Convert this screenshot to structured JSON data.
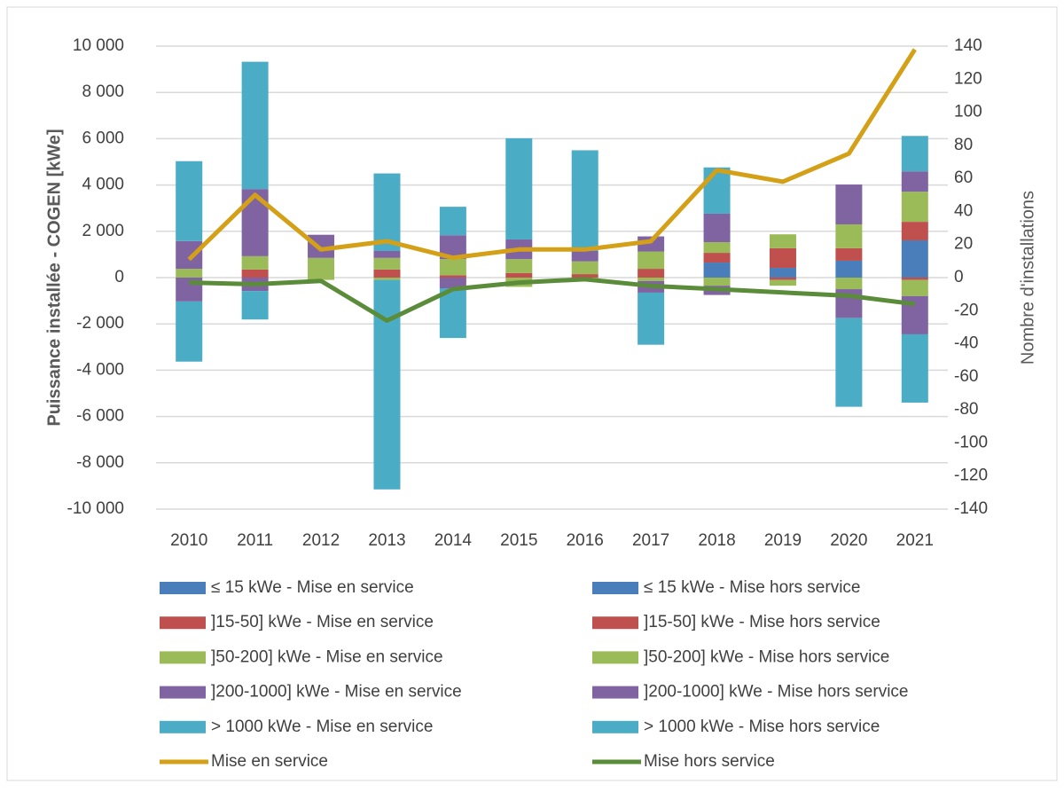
{
  "chart_data": {
    "type": "bar",
    "y_label": "Puissance installée - COGEN [kWe]",
    "y2_label": "Nombre d'installations",
    "categories": [
      "2010",
      "2011",
      "2012",
      "2013",
      "2014",
      "2015",
      "2016",
      "2017",
      "2018",
      "2019",
      "2020",
      "2021"
    ],
    "ylim": [
      -10000,
      10000
    ],
    "yticks": [
      {
        "value": -10000,
        "label": "-10 000"
      },
      {
        "value": -8000,
        "label": "-8 000"
      },
      {
        "value": -6000,
        "label": "-6 000"
      },
      {
        "value": -4000,
        "label": "-4 000"
      },
      {
        "value": -2000,
        "label": "-2 000"
      },
      0,
      {
        "value": 2000,
        "label": "2 000"
      },
      {
        "value": 4000,
        "label": "4 000"
      },
      {
        "value": 6000,
        "label": "6 000"
      },
      {
        "value": 8000,
        "label": "8 000"
      },
      {
        "value": 10000,
        "label": "10 000"
      }
    ],
    "y2lim": [
      -140,
      140
    ],
    "y2ticks": [
      -140,
      -120,
      -100,
      -80,
      -60,
      -40,
      -20,
      0,
      20,
      40,
      60,
      80,
      100,
      120,
      140
    ],
    "grid": true,
    "series": [
      {
        "name": "≤ 15 kWe - Mise en service",
        "color": "#4a7ebb",
        "values": [
          0,
          0,
          0,
          0,
          0,
          0,
          0,
          0,
          650,
          420,
          730,
          1610
        ]
      },
      {
        "name": "≤ 15 kWe - Mise hors service",
        "color": "#4a7ebb",
        "values": [
          0,
          0,
          0,
          0,
          0,
          0,
          0,
          0,
          0,
          0,
          0,
          0
        ]
      },
      {
        "name": "]15-50] kWe - Mise en service",
        "color": "#c0504d",
        "values": [
          0,
          350,
          0,
          350,
          100,
          200,
          150,
          380,
          420,
          850,
          540,
          800
        ]
      },
      {
        "name": "]15-50] kWe - Mise hors service",
        "color": "#c0504d",
        "values": [
          0,
          0,
          0,
          0,
          0,
          0,
          0,
          0,
          0,
          -100,
          0,
          -100
        ]
      },
      {
        "name": "]50-200] kWe - Mise en service",
        "color": "#9bbb59",
        "values": [
          380,
          575,
          850,
          500,
          700,
          600,
          550,
          750,
          460,
          600,
          1030,
          1300
        ]
      },
      {
        "name": "]50-200] kWe - Mise hors service",
        "color": "#9bbb59",
        "values": [
          0,
          0,
          -100,
          -100,
          0,
          -400,
          -100,
          -150,
          -350,
          -250,
          -500,
          -700
        ]
      },
      {
        "name": "]200-1000] kWe - Mise en service",
        "color": "#8064a2",
        "values": [
          1200,
          2900,
          1000,
          300,
          1030,
          850,
          450,
          650,
          1230,
          0,
          1720,
          880
        ]
      },
      {
        "name": "]200-1000] kWe - Mise hors service",
        "color": "#8064a2",
        "values": [
          -1030,
          -580,
          0,
          0,
          -460,
          0,
          0,
          -500,
          -400,
          0,
          -1250,
          -1650
        ]
      },
      {
        "name": "> 1000 kWe - Mise en service",
        "color": "#4bacc6",
        "values": [
          3450,
          5500,
          0,
          3350,
          1230,
          4370,
          4350,
          0,
          2000,
          0,
          0,
          1530
        ]
      },
      {
        "name": "> 1000 kWe - Mise hors service",
        "color": "#4bacc6",
        "values": [
          -2600,
          -1230,
          0,
          -9050,
          -2150,
          0,
          0,
          -2250,
          0,
          0,
          -3830,
          -2950
        ]
      },
      {
        "name": "Mise en service",
        "type": "line",
        "axis": "y2",
        "color": "#d4a017",
        "values": [
          11,
          50,
          17,
          22,
          12,
          17,
          17,
          22,
          65,
          58,
          75,
          138
        ]
      },
      {
        "name": "Mise hors service",
        "type": "line",
        "axis": "y2",
        "color": "#5b8c3a",
        "values": [
          -3,
          -4,
          -2,
          -26,
          -7,
          -3,
          -1,
          -5,
          -7,
          -9,
          -11,
          -16
        ]
      }
    ]
  }
}
